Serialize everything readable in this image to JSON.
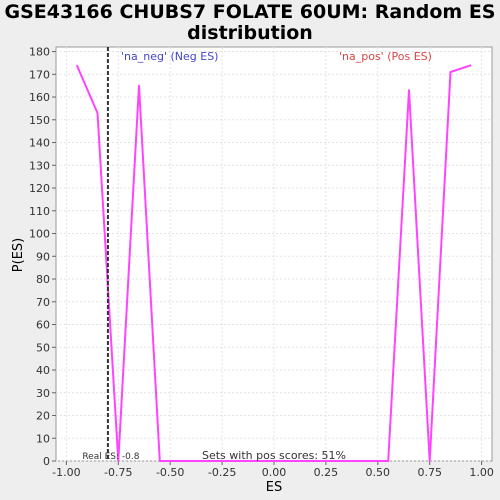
{
  "title": "GSE43166 CHUBS7 FOLATE 60UM: Random ES distribution",
  "chart_data": {
    "type": "line",
    "title": "GSE43166 CHUBS7 FOLATE 60UM: Random ES distribution",
    "xlabel": "ES",
    "ylabel": "P(ES)",
    "xlim": [
      -1.05,
      1.05
    ],
    "ylim": [
      0,
      182
    ],
    "x_ticks": [
      "-1.00",
      "-0.75",
      "-0.50",
      "-0.25",
      "0.00",
      "0.25",
      "0.50",
      "0.75",
      "1.00"
    ],
    "x_tick_values": [
      -1.0,
      -0.75,
      -0.5,
      -0.25,
      0.0,
      0.25,
      0.5,
      0.75,
      1.0
    ],
    "y_ticks": [
      "0",
      "10",
      "20",
      "30",
      "40",
      "50",
      "60",
      "70",
      "80",
      "90",
      "100",
      "110",
      "120",
      "130",
      "140",
      "150",
      "160",
      "170",
      "180"
    ],
    "y_tick_values": [
      0,
      10,
      20,
      30,
      40,
      50,
      60,
      70,
      80,
      90,
      100,
      110,
      120,
      130,
      140,
      150,
      160,
      170,
      180
    ],
    "grid": true,
    "series": [
      {
        "color": "#ff44ff",
        "x": [
          -0.95,
          -0.85,
          -0.75,
          -0.65,
          -0.55,
          -0.45,
          -0.35,
          -0.25,
          -0.15,
          -0.05,
          0.05,
          0.15,
          0.25,
          0.35,
          0.45,
          0.55,
          0.65,
          0.75,
          0.85,
          0.95
        ],
        "y": [
          174,
          153,
          0,
          165,
          0,
          0,
          0,
          0,
          0,
          0,
          0,
          0,
          0,
          0,
          0,
          0,
          163,
          0,
          171,
          174
        ]
      }
    ],
    "real_es": {
      "value": -0.8,
      "label": "Real ES: -0.8",
      "color": "#333333"
    },
    "annotations": [
      {
        "text": "'na_neg' (Neg ES)",
        "color": "#4444cc"
      },
      {
        "text": "'na_pos' (Pos ES)",
        "color": "#dd4444"
      },
      {
        "text": "Sets with pos scores: 51%",
        "color": "#333333"
      }
    ]
  }
}
